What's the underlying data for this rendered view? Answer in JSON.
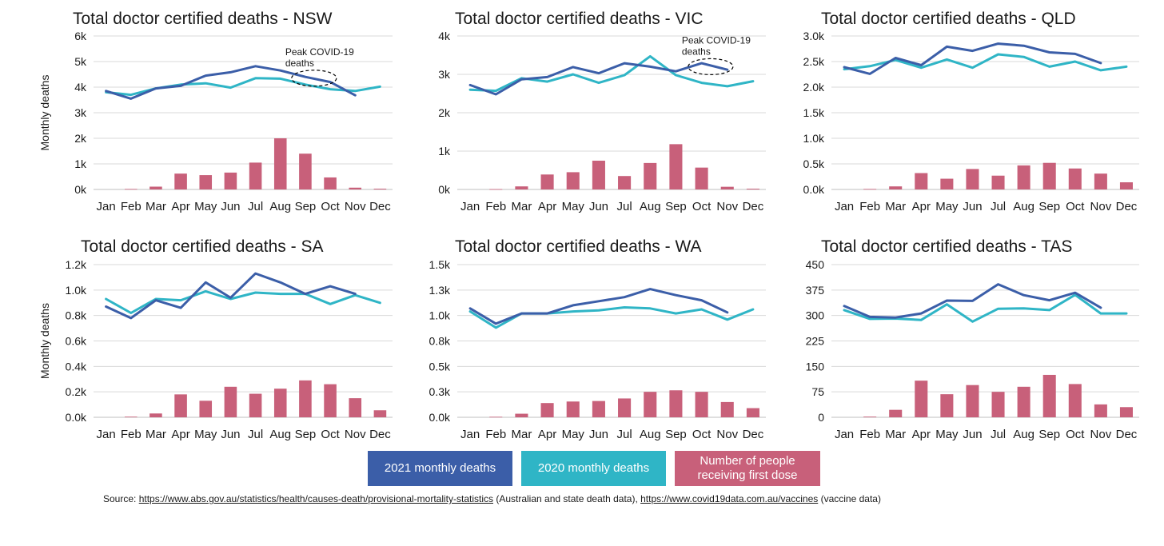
{
  "colors": {
    "deaths_2021": "#3b5ea8",
    "deaths_2020": "#2fb5c6",
    "first_dose": "#c8607a",
    "gridline": "#d9d9d9"
  },
  "legend": {
    "deaths_2021": "2021 monthly deaths",
    "deaths_2020": "2020 monthly deaths",
    "first_dose": "Number of people receiving first dose"
  },
  "source": {
    "prefix": "Source: ",
    "url1": "https://www.abs.gov.au/statistics/health/causes-death/provisional-mortality-statistics",
    "desc1": " (Australian and state death data), ",
    "url2": "https://www.covid19data.com.au/vaccines",
    "desc2": " (vaccine data)"
  },
  "chart_data": [
    {
      "type": "line",
      "title": "Total doctor certified deaths - NSW",
      "ylabel": "Monthly deaths",
      "ylim": [
        0,
        6000
      ],
      "yticks": [
        0,
        1000,
        2000,
        3000,
        4000,
        5000,
        6000
      ],
      "ytick_labels": [
        "0k",
        "1k",
        "2k",
        "3k",
        "4k",
        "5k",
        "6k"
      ],
      "categories": [
        "Jan",
        "Feb",
        "Mar",
        "Apr",
        "May",
        "Jun",
        "Jul",
        "Aug",
        "Sep",
        "Oct",
        "Nov",
        "Dec"
      ],
      "series": [
        {
          "key": "deaths_2021",
          "type": "line",
          "values": [
            3850,
            3550,
            3950,
            4050,
            4450,
            4580,
            4820,
            4650,
            4400,
            4200,
            3680,
            null
          ]
        },
        {
          "key": "deaths_2020",
          "type": "line",
          "values": [
            3800,
            3700,
            3950,
            4100,
            4150,
            3980,
            4350,
            4330,
            4100,
            3920,
            3850,
            4020
          ]
        },
        {
          "key": "first_dose",
          "type": "bar",
          "values": [
            0,
            20,
            110,
            620,
            560,
            660,
            1050,
            2000,
            1400,
            470,
            70,
            30
          ]
        }
      ],
      "annotation": {
        "text": [
          "Peak COVID-19",
          "deaths"
        ],
        "month": "Sep",
        "value": 4350
      },
      "grid": true
    },
    {
      "type": "line",
      "title": "Total doctor certified deaths - VIC",
      "ylabel": "",
      "ylim": [
        0,
        4000
      ],
      "yticks": [
        0,
        1000,
        2000,
        3000,
        4000
      ],
      "ytick_labels": [
        "0k",
        "1k",
        "2k",
        "3k",
        "4k"
      ],
      "categories": [
        "Jan",
        "Feb",
        "Mar",
        "Apr",
        "May",
        "Jun",
        "Jul",
        "Aug",
        "Sep",
        "Oct",
        "Nov",
        "Dec"
      ],
      "series": [
        {
          "key": "deaths_2021",
          "type": "line",
          "values": [
            2720,
            2480,
            2870,
            2930,
            3190,
            3030,
            3290,
            3200,
            3080,
            3290,
            3120,
            null
          ]
        },
        {
          "key": "deaths_2020",
          "type": "line",
          "values": [
            2600,
            2570,
            2900,
            2810,
            3000,
            2780,
            2980,
            3470,
            2980,
            2780,
            2690,
            2820
          ]
        },
        {
          "key": "first_dose",
          "type": "bar",
          "values": [
            0,
            10,
            80,
            390,
            450,
            750,
            350,
            690,
            1180,
            570,
            70,
            20
          ]
        }
      ],
      "annotation": {
        "text": [
          "Peak COVID-19",
          "deaths"
        ],
        "month": "Oct",
        "value": 3200
      },
      "grid": true
    },
    {
      "type": "line",
      "title": "Total doctor certified deaths - QLD",
      "ylabel": "",
      "ylim": [
        0,
        3000
      ],
      "yticks": [
        0,
        500,
        1000,
        1500,
        2000,
        2500,
        3000
      ],
      "ytick_labels": [
        "0.0k",
        "0.5k",
        "1.0k",
        "1.5k",
        "2.0k",
        "2.5k",
        "3.0k"
      ],
      "categories": [
        "Jan",
        "Feb",
        "Mar",
        "Apr",
        "May",
        "Jun",
        "Jul",
        "Aug",
        "Sep",
        "Oct",
        "Nov",
        "Dec"
      ],
      "series": [
        {
          "key": "deaths_2021",
          "type": "line",
          "values": [
            2390,
            2260,
            2570,
            2430,
            2790,
            2710,
            2850,
            2810,
            2680,
            2650,
            2470,
            null
          ]
        },
        {
          "key": "deaths_2020",
          "type": "line",
          "values": [
            2350,
            2410,
            2530,
            2380,
            2540,
            2380,
            2640,
            2590,
            2400,
            2500,
            2330,
            2400
          ]
        },
        {
          "key": "first_dose",
          "type": "bar",
          "values": [
            0,
            10,
            60,
            320,
            210,
            400,
            270,
            470,
            520,
            410,
            310,
            140
          ]
        }
      ],
      "grid": true
    },
    {
      "type": "line",
      "title": "Total doctor certified deaths - SA",
      "ylabel": "Monthly deaths",
      "ylim": [
        0,
        1200
      ],
      "yticks": [
        0,
        200,
        400,
        600,
        800,
        1000,
        1200
      ],
      "ytick_labels": [
        "0.0k",
        "0.2k",
        "0.4k",
        "0.6k",
        "0.8k",
        "1.0k",
        "1.2k"
      ],
      "categories": [
        "Jan",
        "Feb",
        "Mar",
        "Apr",
        "May",
        "Jun",
        "Jul",
        "Aug",
        "Sep",
        "Oct",
        "Nov",
        "Dec"
      ],
      "series": [
        {
          "key": "deaths_2021",
          "type": "line",
          "values": [
            870,
            780,
            920,
            860,
            1060,
            940,
            1130,
            1060,
            970,
            1030,
            970,
            null
          ]
        },
        {
          "key": "deaths_2020",
          "type": "line",
          "values": [
            930,
            820,
            930,
            920,
            990,
            930,
            980,
            970,
            970,
            890,
            960,
            900
          ]
        },
        {
          "key": "first_dose",
          "type": "bar",
          "values": [
            0,
            5,
            30,
            180,
            130,
            240,
            185,
            225,
            290,
            260,
            150,
            55
          ]
        }
      ],
      "grid": true
    },
    {
      "type": "line",
      "title": "Total doctor certified deaths - WA",
      "ylabel": "",
      "ylim": [
        0,
        1500
      ],
      "yticks": [
        0,
        250,
        500,
        750,
        1000,
        1250,
        1500
      ],
      "ytick_labels": [
        "0.0k",
        "0.3k",
        "0.5k",
        "0.8k",
        "1.0k",
        "1.3k",
        "1.5k"
      ],
      "categories": [
        "Jan",
        "Feb",
        "Mar",
        "Apr",
        "May",
        "Jun",
        "Jul",
        "Aug",
        "Sep",
        "Oct",
        "Nov",
        "Dec"
      ],
      "series": [
        {
          "key": "deaths_2021",
          "type": "line",
          "values": [
            1070,
            920,
            1020,
            1020,
            1100,
            1140,
            1180,
            1260,
            1200,
            1150,
            1030,
            null
          ]
        },
        {
          "key": "deaths_2020",
          "type": "line",
          "values": [
            1040,
            880,
            1020,
            1020,
            1040,
            1050,
            1080,
            1070,
            1020,
            1060,
            960,
            1060
          ]
        },
        {
          "key": "first_dose",
          "type": "bar",
          "values": [
            0,
            5,
            35,
            140,
            155,
            160,
            185,
            250,
            265,
            250,
            150,
            90
          ]
        }
      ],
      "grid": true
    },
    {
      "type": "line",
      "title": "Total doctor certified deaths - TAS",
      "ylabel": "",
      "ylim": [
        0,
        450
      ],
      "yticks": [
        0,
        75,
        150,
        225,
        300,
        375,
        450
      ],
      "ytick_labels": [
        "0",
        "75",
        "150",
        "225",
        "300",
        "375",
        "450"
      ],
      "categories": [
        "Jan",
        "Feb",
        "Mar",
        "Apr",
        "May",
        "Jun",
        "Jul",
        "Aug",
        "Sep",
        "Oct",
        "Nov",
        "Dec"
      ],
      "series": [
        {
          "key": "deaths_2021",
          "type": "line",
          "values": [
            328,
            296,
            294,
            306,
            344,
            343,
            392,
            360,
            345,
            367,
            323,
            null
          ]
        },
        {
          "key": "deaths_2020",
          "type": "line",
          "values": [
            316,
            290,
            291,
            287,
            333,
            282,
            320,
            321,
            316,
            361,
            306,
            306
          ]
        },
        {
          "key": "first_dose",
          "type": "bar",
          "values": [
            0,
            2,
            22,
            108,
            68,
            95,
            75,
            90,
            125,
            98,
            38,
            30
          ]
        }
      ],
      "grid": true
    }
  ]
}
